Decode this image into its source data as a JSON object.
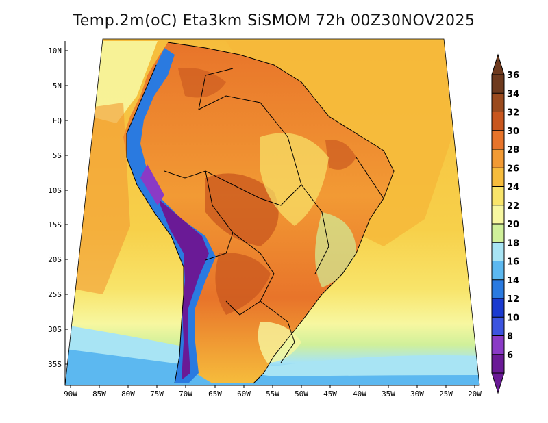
{
  "title": "Temp.2m(oC) Eta3km SiSMOM 72h 00Z30NOV2025",
  "map": {
    "variable": "Temperature at 2m",
    "units": "oC",
    "lat_ticks": [
      "10N",
      "5N",
      "EQ",
      "5S",
      "10S",
      "15S",
      "20S",
      "25S",
      "30S",
      "35S"
    ],
    "lon_ticks": [
      "90W",
      "85W",
      "80W",
      "75W",
      "70W",
      "65W",
      "60W",
      "55W",
      "50W",
      "45W",
      "40W",
      "35W",
      "30W",
      "25W",
      "20W"
    ]
  },
  "colorbar": {
    "labels": [
      "36",
      "34",
      "32",
      "30",
      "28",
      "26",
      "24",
      "22",
      "20",
      "18",
      "16",
      "14",
      "12",
      "10",
      "8",
      "6"
    ],
    "colors": [
      "#6e3a1e",
      "#9a4a1e",
      "#c8561e",
      "#e8742a",
      "#f29a34",
      "#f6bc3c",
      "#f8e46a",
      "#f7f7a0",
      "#d0f09a",
      "#a8e4f4",
      "#5cb8f0",
      "#2a7ae0",
      "#1a3ad0",
      "#3c54e0",
      "#8a3ac6",
      "#6a1a96"
    ]
  }
}
